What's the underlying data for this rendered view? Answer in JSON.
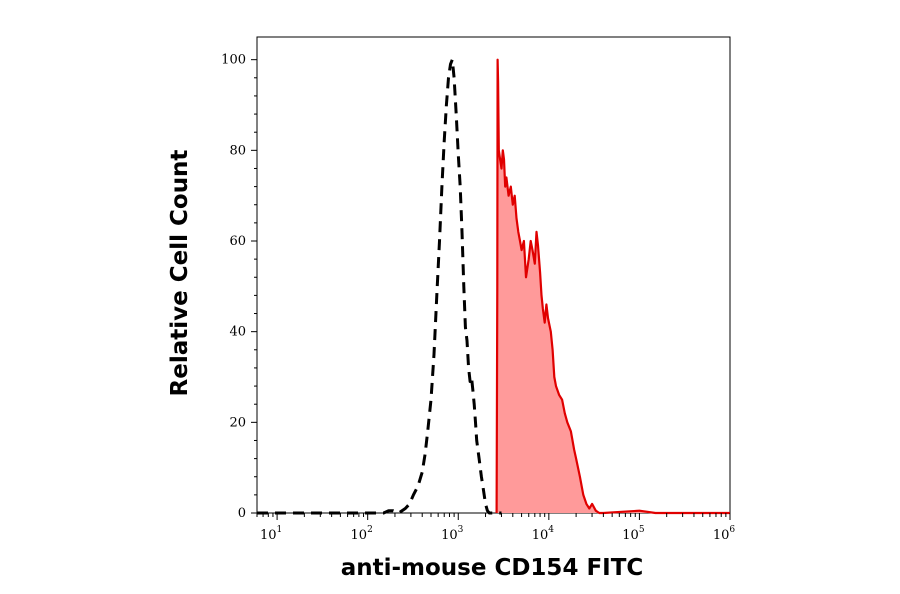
{
  "chart_data": {
    "type": "area",
    "title": "",
    "xlabel": "anti-mouse CD154 FITC",
    "ylabel": "Relative Cell Count",
    "x_scale": "log",
    "xlim": [
      6,
      1000000
    ],
    "ylim": [
      0,
      105
    ],
    "x_ticks": [
      {
        "base": "10",
        "exp": "1",
        "value": 10
      },
      {
        "base": "10",
        "exp": "2",
        "value": 100
      },
      {
        "base": "10",
        "exp": "3",
        "value": 1000
      },
      {
        "base": "10",
        "exp": "4",
        "value": 10000
      },
      {
        "base": "10",
        "exp": "5",
        "value": 100000
      },
      {
        "base": "10",
        "exp": "6",
        "value": 1000000
      }
    ],
    "y_ticks": [
      {
        "label": "0",
        "value": 0
      },
      {
        "label": "20",
        "value": 20
      },
      {
        "label": "40",
        "value": 40
      },
      {
        "label": "60",
        "value": 60
      },
      {
        "label": "80",
        "value": 80
      },
      {
        "label": "100",
        "value": 100
      }
    ],
    "grid": false,
    "series": [
      {
        "style": "dashed",
        "color": "#000000",
        "fill": "none",
        "x": [
          6,
          150,
          170,
          190,
          220,
          260,
          290,
          320,
          360,
          400,
          430,
          460,
          500,
          540,
          580,
          620,
          660,
          700,
          740,
          780,
          820,
          860,
          900,
          950,
          1000,
          1050,
          1100,
          1150,
          1200,
          1250,
          1300,
          1350,
          1400,
          1450,
          1500,
          1550,
          1600,
          1700,
          1800,
          1900,
          2000,
          2100,
          2200,
          2400,
          2600,
          2800,
          3000
        ],
        "y": [
          0,
          0,
          0.5,
          0.5,
          0,
          1,
          2,
          4,
          6,
          9,
          13,
          18,
          25,
          35,
          48,
          60,
          72,
          82,
          90,
          96,
          99,
          100,
          96,
          88,
          79,
          72,
          62,
          50,
          41,
          38,
          32,
          29,
          30,
          27,
          24,
          20,
          16,
          12,
          8,
          5,
          2,
          0.5,
          0,
          0,
          0,
          0,
          0
        ]
      },
      {
        "style": "solid",
        "color": "#e00000",
        "fill": "#ff9a9a",
        "x": [
          2650,
          2700,
          2720,
          2750,
          2800,
          2900,
          3000,
          3100,
          3200,
          3300,
          3400,
          3600,
          3800,
          4000,
          4200,
          4400,
          4600,
          4800,
          5000,
          5300,
          5600,
          6000,
          6300,
          6600,
          7000,
          7300,
          7600,
          8000,
          8300,
          8600,
          9000,
          9400,
          9800,
          10500,
          11000,
          11500,
          12000,
          13000,
          14000,
          15000,
          16000,
          17500,
          19000,
          20000,
          22000,
          24000,
          26000,
          28000,
          30000,
          33000,
          36000,
          40000,
          100000,
          150000,
          1000000
        ],
        "y": [
          0,
          50,
          100,
          95,
          80,
          78,
          76,
          80,
          78,
          72,
          74,
          70,
          72,
          68,
          70,
          65,
          62,
          60,
          58,
          60,
          52,
          56,
          60,
          58,
          55,
          62,
          59,
          53,
          48,
          45,
          42,
          46,
          43,
          40,
          36,
          30,
          28,
          26,
          25,
          22,
          20,
          18,
          14,
          12,
          8,
          4,
          2,
          1,
          2,
          0.5,
          0,
          0,
          0.5,
          0,
          0
        ]
      }
    ]
  }
}
